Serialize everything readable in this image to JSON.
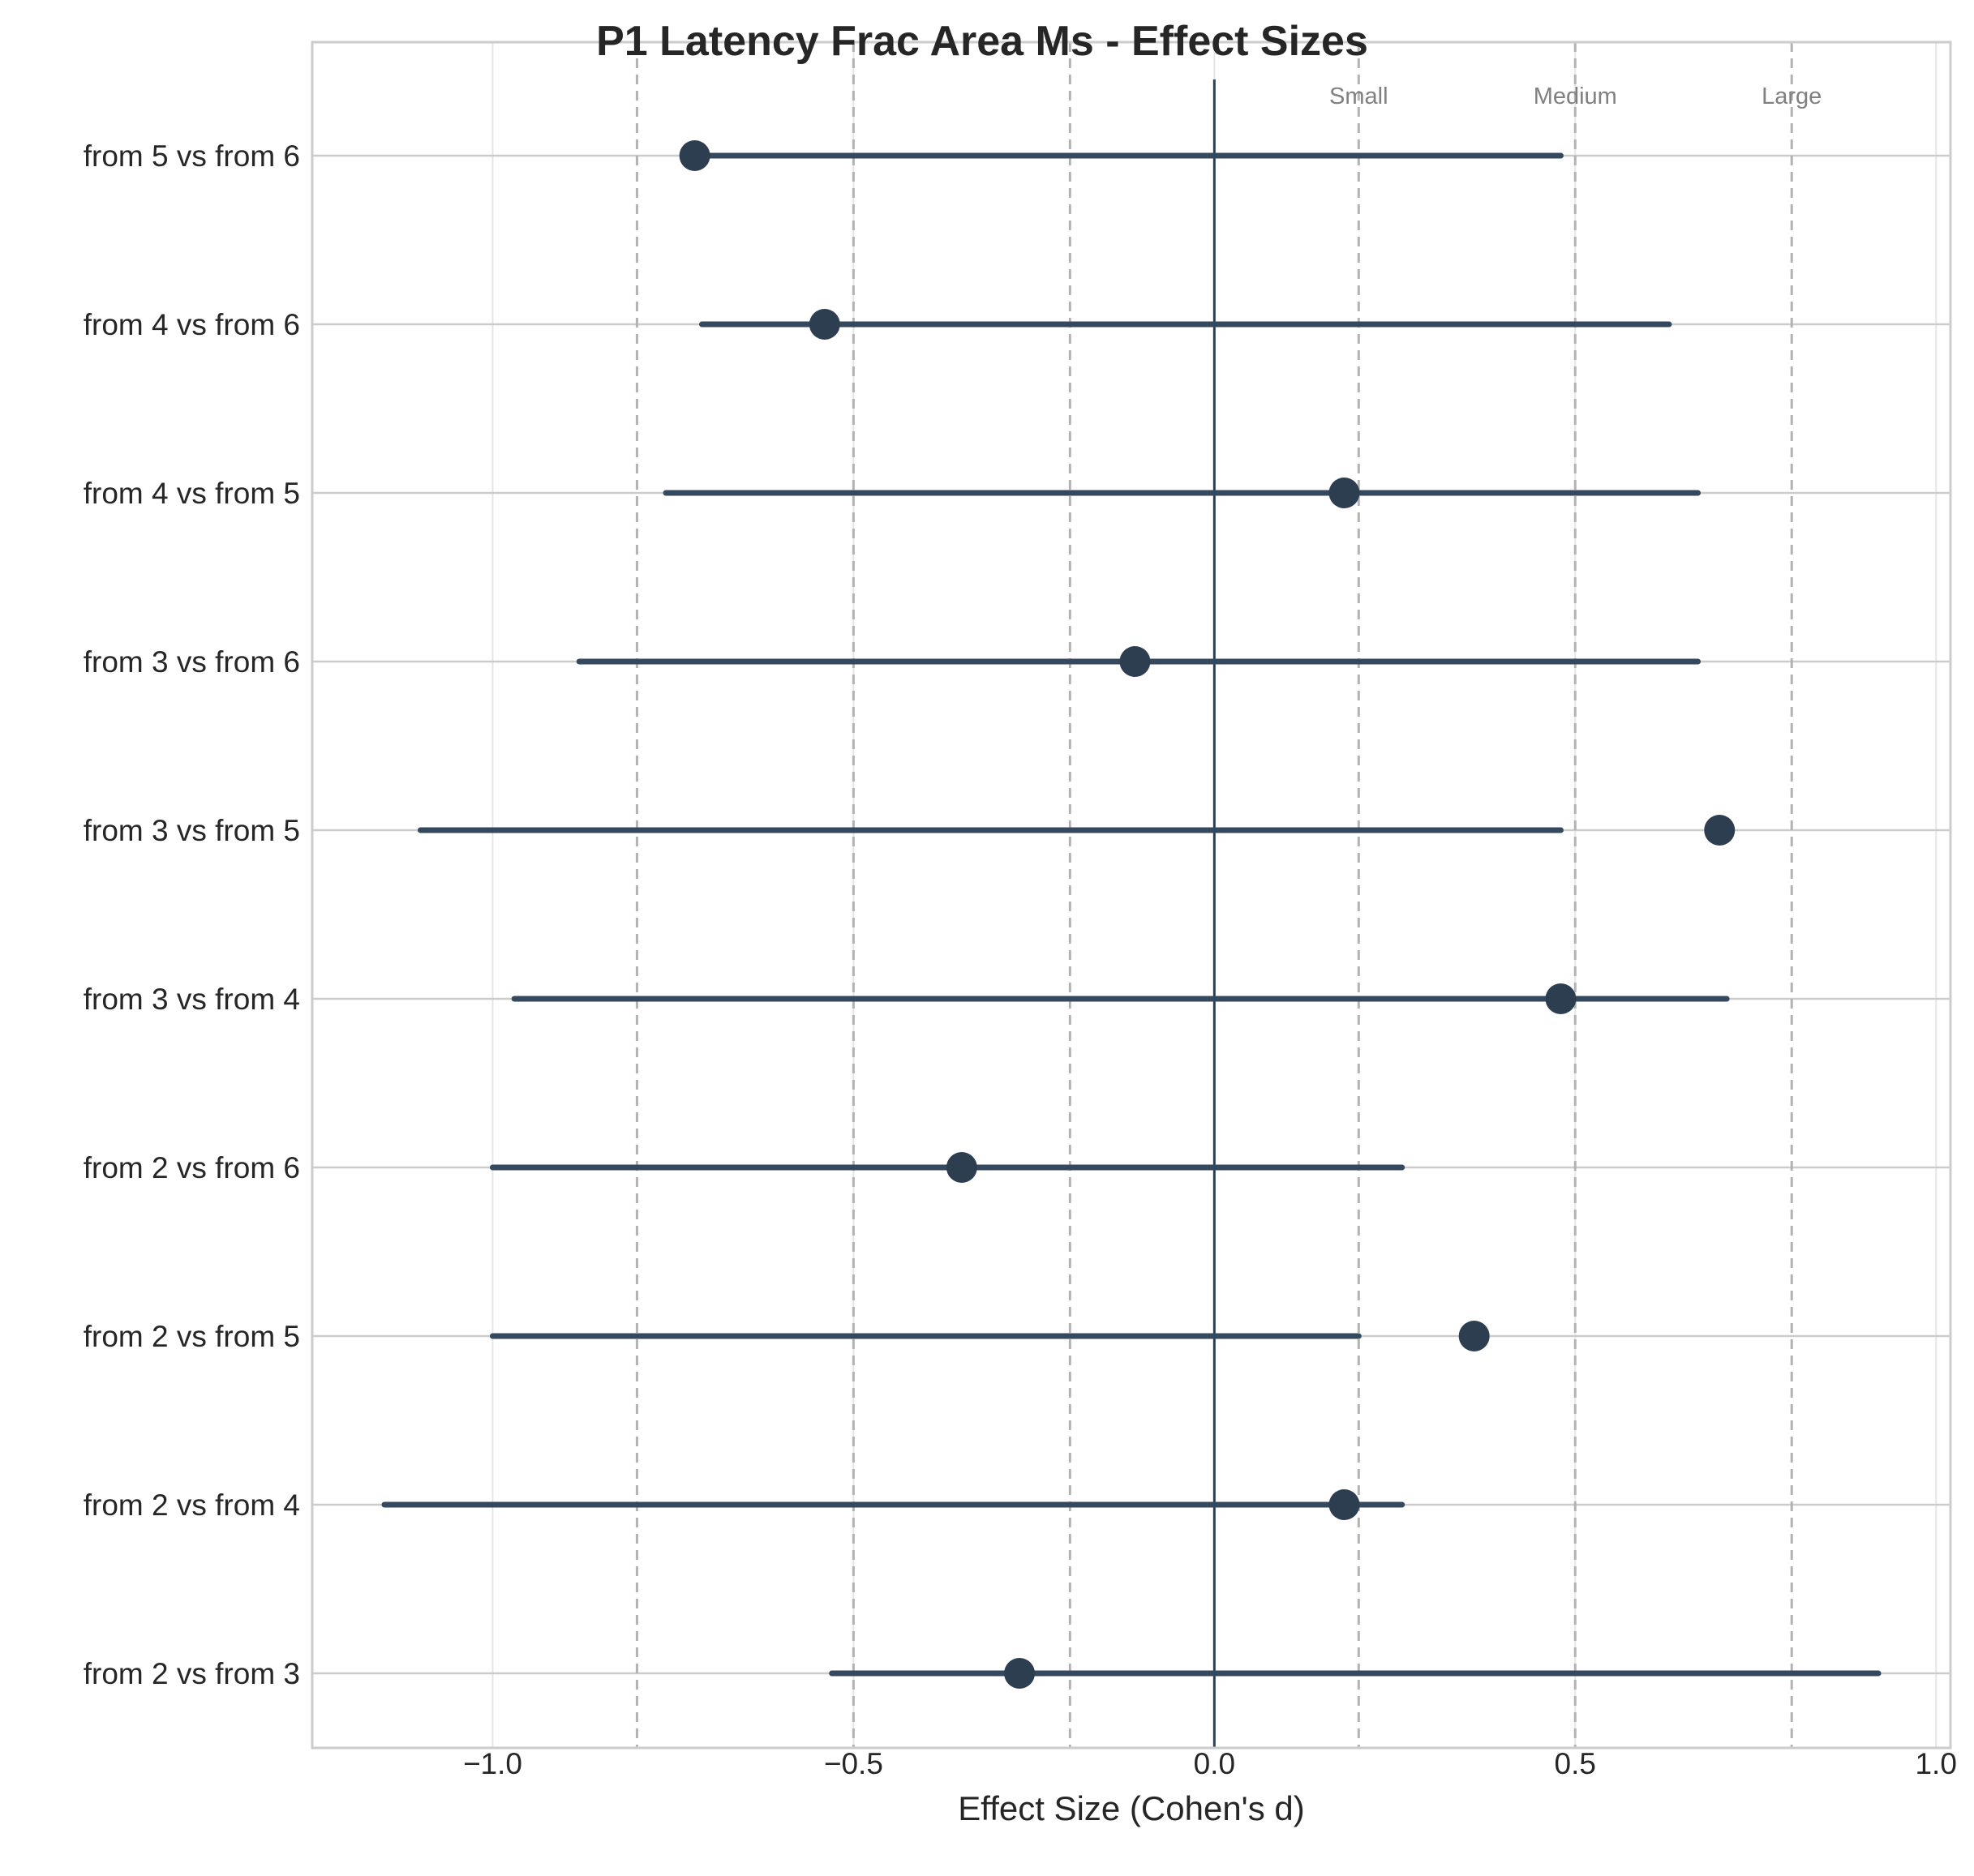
{
  "chart_data": {
    "type": "forest",
    "title": "P1 Latency Frac Area Ms - Effect Sizes",
    "xlabel": "Effect Size (Cohen's d)",
    "ylabel": "",
    "xlim": [
      -1.25,
      1.02
    ],
    "xticks": [
      -1.0,
      -0.5,
      0.0,
      0.5,
      1.0
    ],
    "xtick_labels": [
      "−1.0",
      "−0.5",
      "0.0",
      "0.5",
      "1.0"
    ],
    "grid": true,
    "reference_line": 0.0,
    "thresholds": [
      {
        "label": "Small",
        "value": 0.2
      },
      {
        "label": "Medium",
        "value": 0.5
      },
      {
        "label": "Large",
        "value": 0.8
      }
    ],
    "negative_thresholds": [
      -0.2,
      -0.5,
      -0.8
    ],
    "comparisons": [
      {
        "label": "from 2 vs from 3",
        "d": -0.27,
        "ci_low": -0.53,
        "ci_high": 0.92
      },
      {
        "label": "from 2 vs from 4",
        "d": 0.18,
        "ci_low": -1.15,
        "ci_high": 0.26
      },
      {
        "label": "from 2 vs from 5",
        "d": 0.36,
        "ci_low": -1.0,
        "ci_high": 0.2
      },
      {
        "label": "from 2 vs from 6",
        "d": -0.35,
        "ci_low": -1.0,
        "ci_high": 0.26
      },
      {
        "label": "from 3 vs from 4",
        "d": 0.48,
        "ci_low": -0.97,
        "ci_high": 0.71
      },
      {
        "label": "from 3 vs from 5",
        "d": 0.7,
        "ci_low": -1.1,
        "ci_high": 0.48
      },
      {
        "label": "from 3 vs from 6",
        "d": -0.11,
        "ci_low": -0.88,
        "ci_high": 0.67
      },
      {
        "label": "from 4 vs from 5",
        "d": 0.18,
        "ci_low": -0.76,
        "ci_high": 0.67
      },
      {
        "label": "from 4 vs from 6",
        "d": -0.54,
        "ci_low": -0.71,
        "ci_high": 0.63
      },
      {
        "label": "from 5 vs from 6",
        "d": -0.72,
        "ci_low": -0.72,
        "ci_high": 0.48
      }
    ],
    "colors": {
      "marker": "#2c3e50",
      "ci_line": "#34495e",
      "grid": "#cccccc",
      "threshold": "#b3b3b3",
      "reference": "#2c3e50",
      "frame": "#cccccc"
    }
  }
}
